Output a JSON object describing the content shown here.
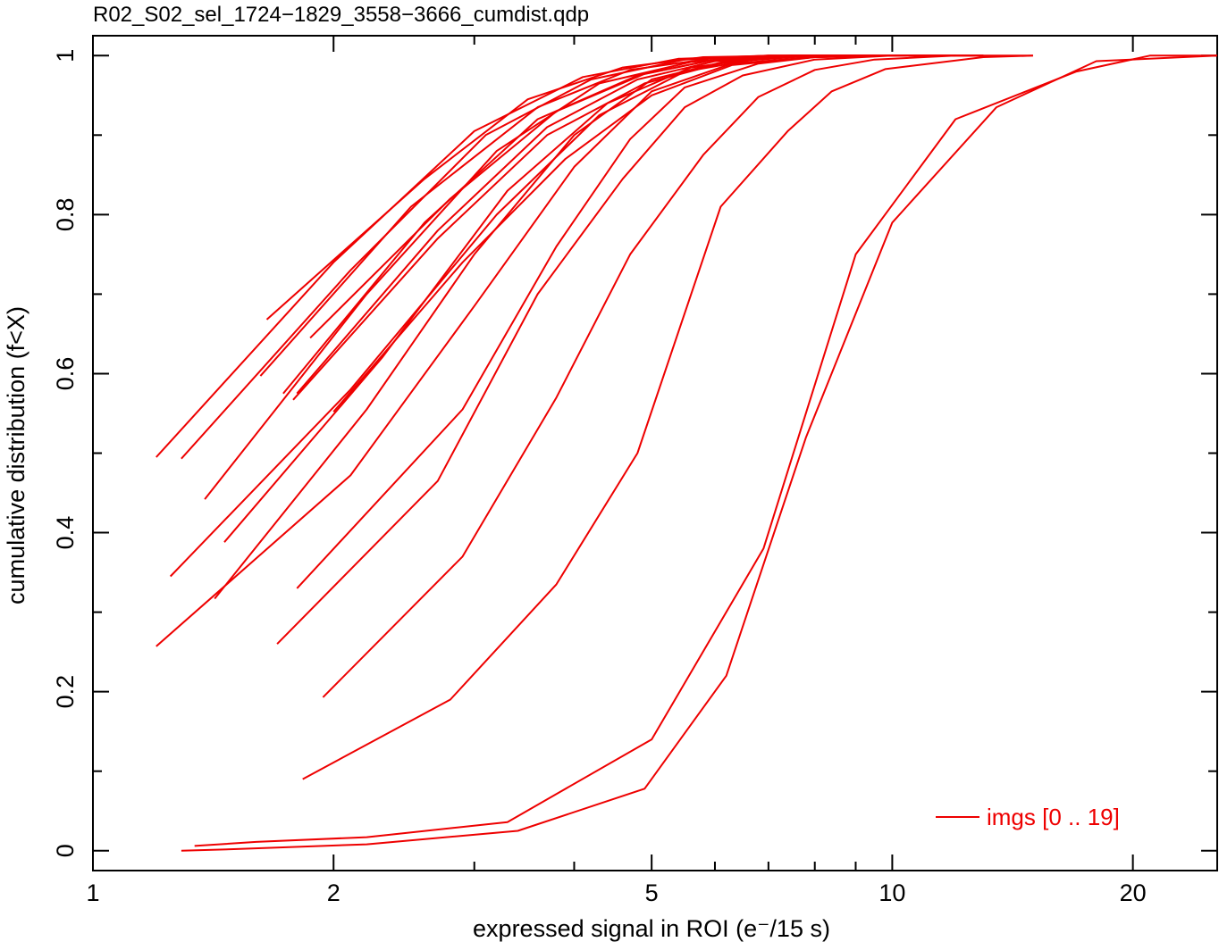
{
  "chart_data": {
    "type": "line",
    "title": "R02_S02_sel_1724−1829_3558−3666_cumdist.qdp",
    "xlabel": "expressed signal in ROI (e⁻/15 s)",
    "ylabel": "cumulative distribution (f<X)",
    "x_scale": "log",
    "xlim": [
      1,
      25.5
    ],
    "ylim": [
      -0.025,
      1.025
    ],
    "x_ticks": [
      {
        "value": 1,
        "label": "1"
      },
      {
        "value": 2,
        "label": "2"
      },
      {
        "value": 5,
        "label": "5"
      },
      {
        "value": 10,
        "label": "10"
      },
      {
        "value": 20,
        "label": "20"
      }
    ],
    "x_minor_ticks": [
      3,
      4,
      6,
      7,
      8,
      9
    ],
    "y_ticks": [
      {
        "value": 0,
        "label": "0"
      },
      {
        "value": 0.2,
        "label": "0.2"
      },
      {
        "value": 0.4,
        "label": "0.4"
      },
      {
        "value": 0.6,
        "label": "0.6"
      },
      {
        "value": 0.8,
        "label": "0.8"
      },
      {
        "value": 1,
        "label": "1"
      }
    ],
    "line_color": "#ee0000",
    "legend": {
      "label": "imgs [0 .. 19]",
      "placement": "bottom-right"
    },
    "series": [
      {
        "x": [
          1.29,
          1.5,
          2.2,
          3.4,
          4.9,
          6.2,
          7.8,
          10.0,
          13.5,
          18.0,
          25.5
        ],
        "y": [
          0.0,
          0.002,
          0.008,
          0.025,
          0.078,
          0.22,
          0.52,
          0.79,
          0.935,
          0.993,
          1.0
        ]
      },
      {
        "x": [
          1.34,
          1.6,
          2.2,
          3.3,
          5.0,
          6.9,
          9.0,
          12.0,
          17.0,
          21.0,
          25.5
        ],
        "y": [
          0.006,
          0.011,
          0.017,
          0.036,
          0.14,
          0.38,
          0.75,
          0.92,
          0.98,
          1.0,
          1.0
        ]
      },
      {
        "x": [
          1.83,
          2.8,
          3.8,
          4.8,
          6.1,
          7.4,
          8.4,
          9.8,
          13.0,
          15.0
        ],
        "y": [
          0.09,
          0.19,
          0.335,
          0.5,
          0.81,
          0.905,
          0.955,
          0.983,
          0.998,
          1.0
        ]
      },
      {
        "x": [
          1.94,
          2.9,
          3.8,
          4.7,
          5.8,
          6.8,
          8.0,
          9.5,
          12.0,
          15.0
        ],
        "y": [
          0.193,
          0.37,
          0.57,
          0.75,
          0.875,
          0.948,
          0.982,
          0.995,
          1.0,
          1.0
        ]
      },
      {
        "x": [
          1.7,
          2.7,
          3.6,
          4.6,
          5.5,
          6.5,
          8.0,
          10.0,
          13.0
        ],
        "y": [
          0.26,
          0.465,
          0.7,
          0.845,
          0.935,
          0.975,
          0.995,
          1.0,
          1.0
        ]
      },
      {
        "x": [
          1.8,
          2.9,
          3.8,
          4.7,
          5.5,
          6.8,
          8.0,
          10.0,
          13.0
        ],
        "y": [
          0.33,
          0.555,
          0.76,
          0.895,
          0.96,
          0.99,
          0.998,
          1.0,
          1.0
        ]
      },
      {
        "x": [
          1.2,
          2.1,
          3.0,
          4.0,
          5.0,
          6.3,
          8.0,
          10.0,
          13.0
        ],
        "y": [
          0.257,
          0.472,
          0.685,
          0.86,
          0.955,
          0.99,
          0.998,
          1.0,
          1.0
        ]
      },
      {
        "x": [
          1.42,
          2.2,
          3.0,
          4.0,
          5.0,
          6.2,
          8.0,
          10.0,
          12.0
        ],
        "y": [
          0.317,
          0.555,
          0.75,
          0.9,
          0.97,
          0.993,
          1.0,
          1.0,
          1.0
        ]
      },
      {
        "x": [
          1.25,
          2.1,
          3.2,
          4.3,
          5.5,
          7.0,
          9.0,
          12.0
        ],
        "y": [
          0.345,
          0.58,
          0.8,
          0.925,
          0.98,
          0.998,
          1.0,
          1.0
        ]
      },
      {
        "x": [
          1.46,
          2.3,
          3.3,
          4.4,
          5.6,
          7.0,
          9.0,
          11.0
        ],
        "y": [
          0.388,
          0.62,
          0.83,
          0.94,
          0.985,
          0.998,
          1.0,
          1.0
        ]
      },
      {
        "x": [
          2.0,
          2.9,
          3.9,
          5.0,
          6.3,
          8.0,
          10.0
        ],
        "y": [
          0.552,
          0.74,
          0.87,
          0.95,
          0.988,
          0.998,
          1.0
        ]
      },
      {
        "x": [
          1.78,
          2.7,
          3.7,
          4.9,
          6.2,
          8.0,
          10.0
        ],
        "y": [
          0.567,
          0.77,
          0.9,
          0.965,
          0.992,
          1.0,
          1.0
        ]
      },
      {
        "x": [
          1.8,
          2.7,
          3.7,
          4.8,
          6.0,
          7.5,
          9.5
        ],
        "y": [
          0.575,
          0.78,
          0.91,
          0.97,
          0.993,
          1.0,
          1.0
        ]
      },
      {
        "x": [
          1.73,
          2.6,
          3.6,
          4.8,
          6.0,
          7.5,
          9.5
        ],
        "y": [
          0.575,
          0.79,
          0.92,
          0.975,
          0.995,
          1.0,
          1.0
        ]
      },
      {
        "x": [
          1.38,
          2.2,
          3.2,
          4.3,
          5.6,
          7.0,
          9.0
        ],
        "y": [
          0.442,
          0.7,
          0.88,
          0.965,
          0.992,
          1.0,
          1.0
        ]
      },
      {
        "x": [
          1.87,
          2.8,
          3.8,
          4.9,
          6.0,
          7.5,
          9.0
        ],
        "y": [
          0.645,
          0.82,
          0.93,
          0.977,
          0.995,
          1.0,
          1.0
        ]
      },
      {
        "x": [
          1.62,
          2.5,
          3.6,
          4.7,
          6.0,
          7.5,
          9.0
        ],
        "y": [
          0.597,
          0.81,
          0.935,
          0.982,
          0.997,
          1.0,
          1.0
        ]
      },
      {
        "x": [
          1.29,
          2.1,
          3.1,
          4.2,
          5.5,
          7.0,
          8.5
        ],
        "y": [
          0.493,
          0.73,
          0.9,
          0.97,
          0.995,
          1.0,
          1.0
        ]
      },
      {
        "x": [
          1.2,
          2.0,
          3.0,
          4.1,
          5.4,
          7.0,
          8.5
        ],
        "y": [
          0.495,
          0.74,
          0.905,
          0.973,
          0.996,
          1.0,
          1.0
        ]
      },
      {
        "x": [
          1.65,
          2.6,
          3.5,
          4.6,
          5.8,
          7.5,
          9.0
        ],
        "y": [
          0.668,
          0.845,
          0.945,
          0.985,
          0.998,
          1.0,
          1.0
        ]
      }
    ]
  }
}
